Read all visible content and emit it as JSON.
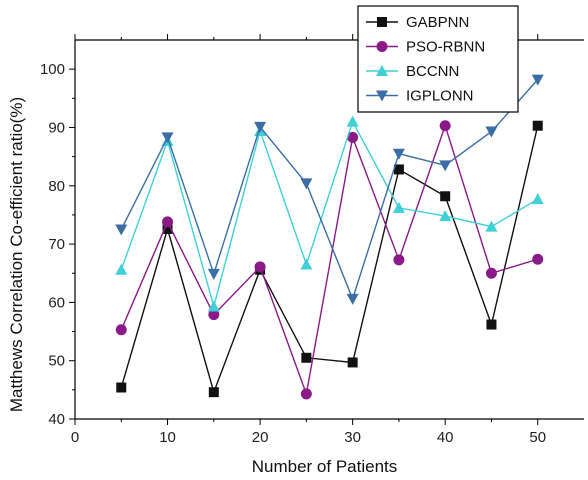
{
  "chart_data": {
    "type": "line",
    "xlabel": "Number of Patients",
    "ylabel": "Matthews Correlation Co-efficient ratio(%)",
    "xlim": [
      0,
      55
    ],
    "ylim": [
      40,
      105
    ],
    "xticks": [
      0,
      10,
      20,
      30,
      40,
      50
    ],
    "yticks": [
      40,
      50,
      60,
      70,
      80,
      90,
      100
    ],
    "grid": false,
    "legend_position": "top-right",
    "x": [
      5,
      10,
      15,
      20,
      25,
      30,
      35,
      40,
      45,
      50
    ],
    "series": [
      {
        "name": "GABPNN",
        "color": "#111111",
        "marker": "square",
        "values": [
          45.4,
          72.6,
          44.6,
          65.6,
          50.5,
          49.7,
          82.8,
          78.2,
          56.2,
          90.3
        ]
      },
      {
        "name": "PSO-RBNN",
        "color": "#8b1a89",
        "marker": "circle",
        "values": [
          55.3,
          73.8,
          57.9,
          66.1,
          44.3,
          88.3,
          67.3,
          90.3,
          65.0,
          67.4
        ]
      },
      {
        "name": "BCCNN",
        "color": "#3fcfd4",
        "marker": "triangle-up",
        "values": [
          65.6,
          87.7,
          59.3,
          89.4,
          66.5,
          91.0,
          76.2,
          74.8,
          73.0,
          77.7
        ]
      },
      {
        "name": "IGPLONN",
        "color": "#3a6ea5",
        "marker": "triangle-down",
        "values": [
          72.5,
          88.3,
          64.9,
          90.1,
          80.4,
          60.6,
          85.5,
          83.5,
          89.3,
          98.2
        ]
      }
    ]
  }
}
